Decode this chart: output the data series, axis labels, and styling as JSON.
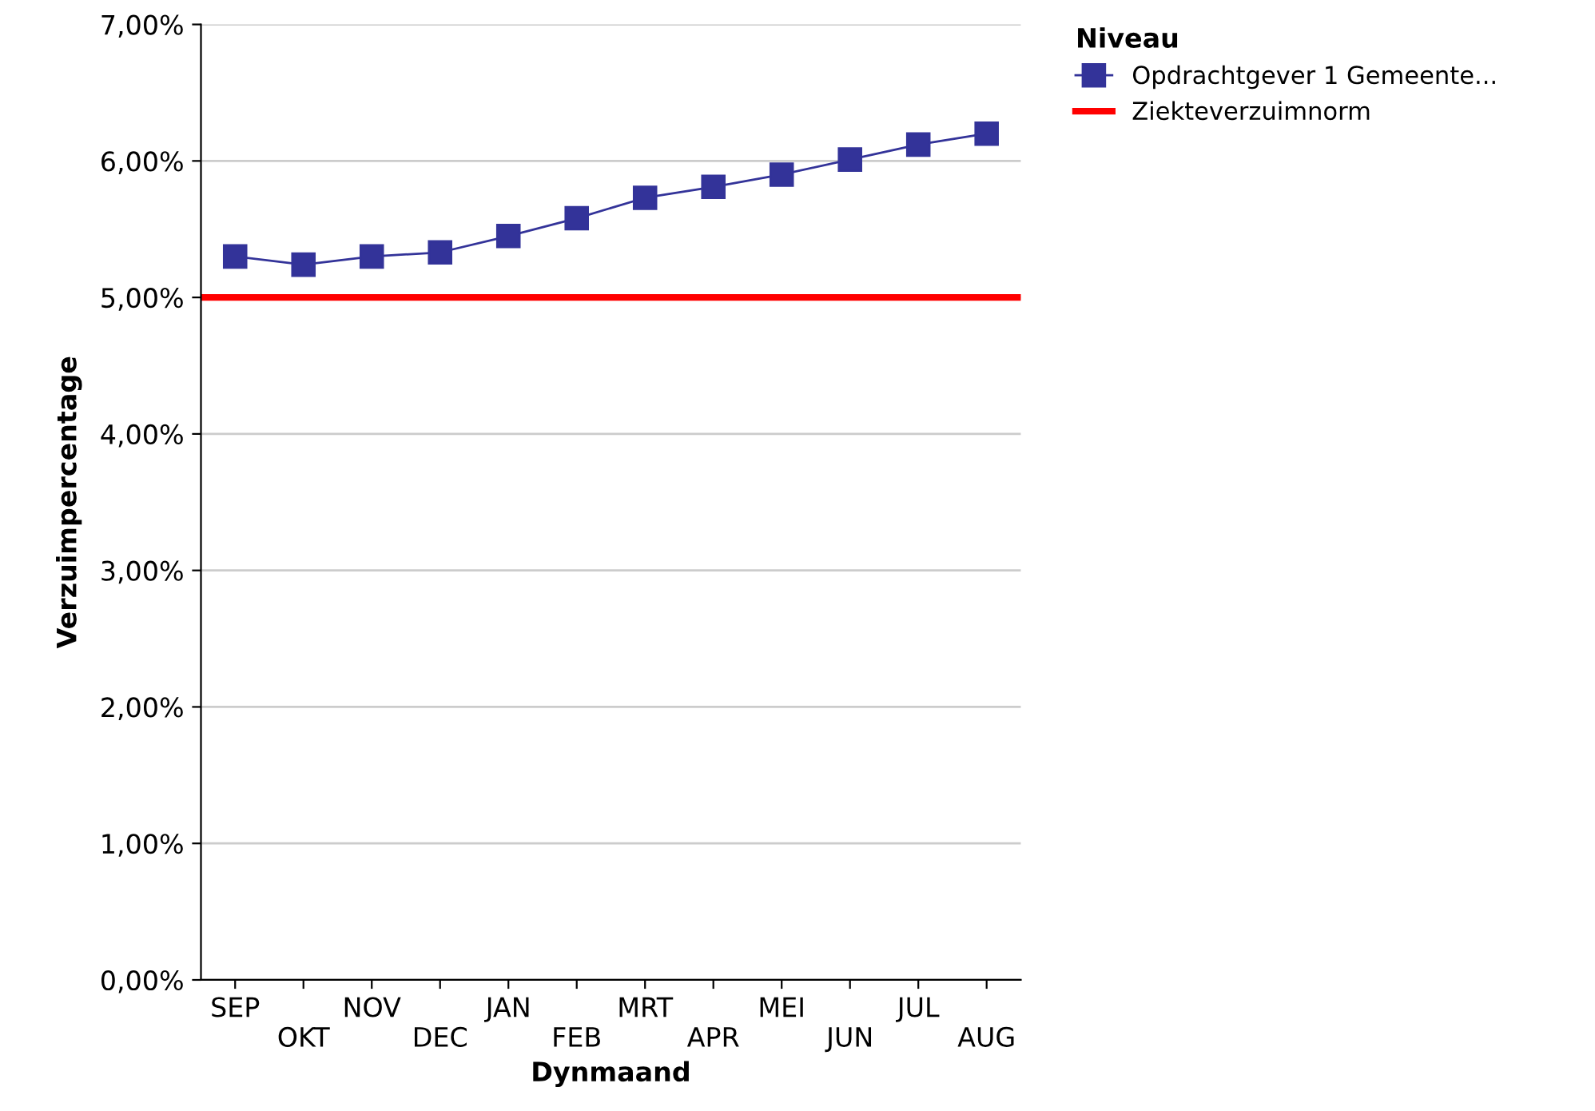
{
  "chart_data": {
    "type": "line",
    "xlabel": "Dynmaand",
    "ylabel": "Verzuimpercentage",
    "legend_title": "Niveau",
    "categories": [
      "SEP",
      "OKT",
      "NOV",
      "DEC",
      "JAN",
      "FEB",
      "MRT",
      "APR",
      "MEI",
      "JUN",
      "JUL",
      "AUG"
    ],
    "series": [
      {
        "name": "Opdrachtgever 1 Gemeente...",
        "color": "#333399",
        "values": [
          5.3,
          5.24,
          5.3,
          5.33,
          5.45,
          5.58,
          5.73,
          5.81,
          5.9,
          6.01,
          6.12,
          6.2
        ]
      }
    ],
    "ref_lines": [
      {
        "axis": "y",
        "value": 5.0,
        "label": "Ziekteverzuimnorm",
        "color": "#ff0000"
      }
    ],
    "ylim": [
      0,
      7
    ],
    "yticks": [
      {
        "value": 0,
        "label": "0,00%"
      },
      {
        "value": 1,
        "label": "1,00%"
      },
      {
        "value": 2,
        "label": "2,00%"
      },
      {
        "value": 3,
        "label": "3,00%"
      },
      {
        "value": 4,
        "label": "4,00%"
      },
      {
        "value": 5,
        "label": "5,00%"
      },
      {
        "value": 6,
        "label": "6,00%"
      },
      {
        "value": 7,
        "label": "7,00%"
      }
    ],
    "grid": "y",
    "legend": "top right",
    "marker": "square",
    "line_style": "solid"
  }
}
